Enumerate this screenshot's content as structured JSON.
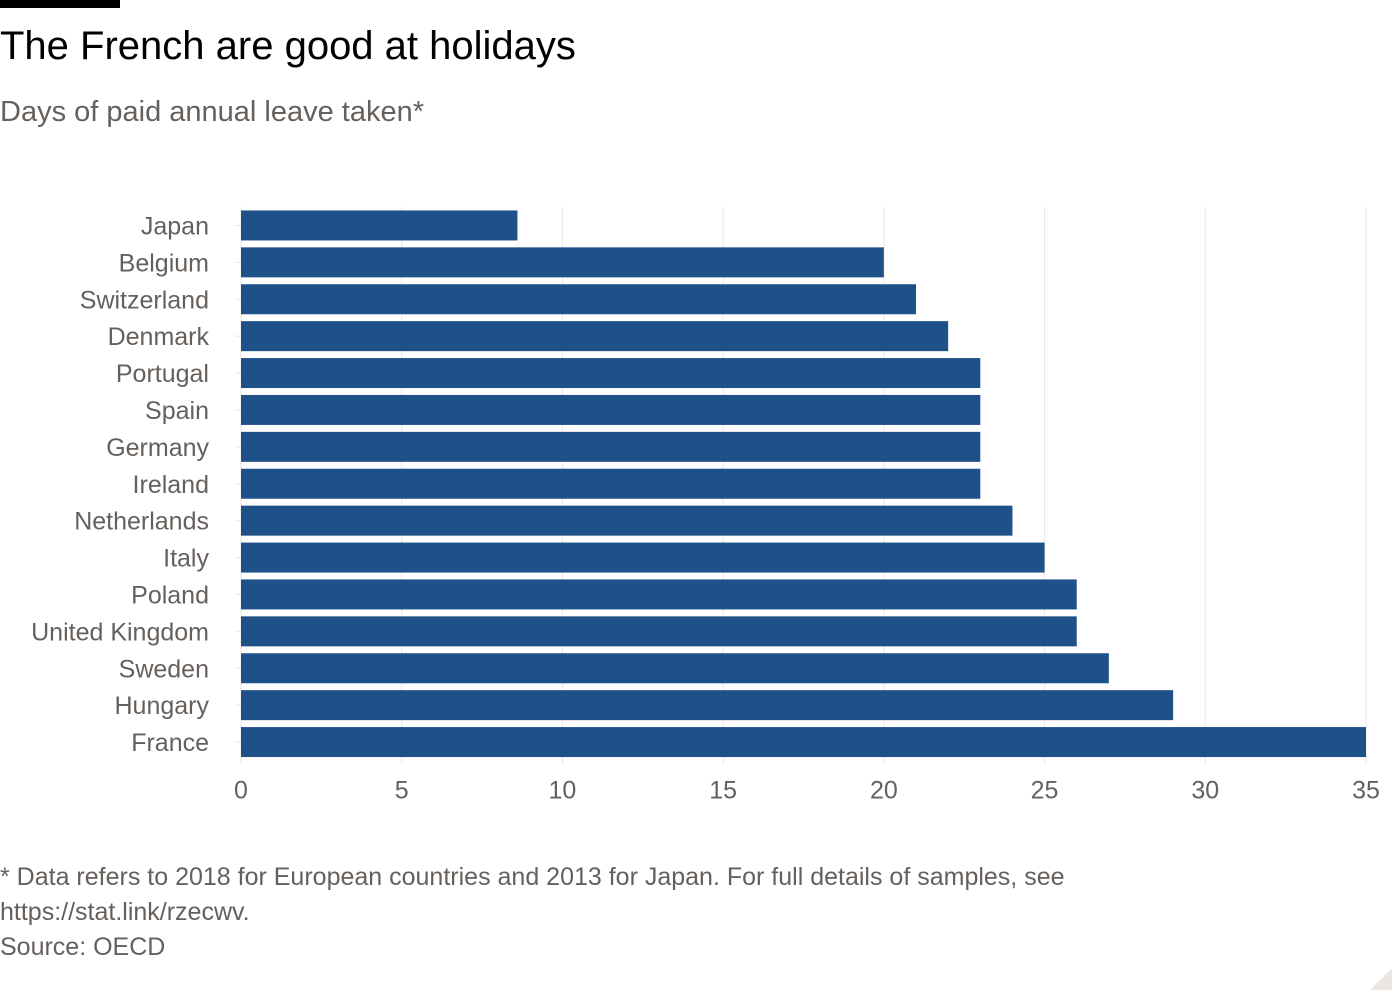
{
  "title": "The French are good at holidays",
  "subtitle": "Days of paid annual leave taken*",
  "footnote": {
    "line1": "* Data refers to 2018 for European countries and 2013 for Japan. For full details of samples, see",
    "line2": "https://stat.link/rzecwv.",
    "source": "Source: OECD"
  },
  "colors": {
    "bar": "#1f5189",
    "grid": "#ebe6e1",
    "axis_text": "#66605c",
    "background": "#ffffff"
  },
  "chart_data": {
    "type": "bar",
    "orientation": "horizontal",
    "title": "The French are good at holidays",
    "subtitle": "Days of paid annual leave taken*",
    "xlabel": "",
    "ylabel": "",
    "categories": [
      "Japan",
      "Belgium",
      "Switzerland",
      "Denmark",
      "Portugal",
      "Spain",
      "Germany",
      "Ireland",
      "Netherlands",
      "Italy",
      "Poland",
      "United Kingdom",
      "Sweden",
      "Hungary",
      "France"
    ],
    "values": [
      8.6,
      20,
      21,
      22,
      23,
      23,
      23,
      23,
      24,
      25,
      26,
      26,
      27,
      29,
      35
    ],
    "xlim": [
      0,
      35
    ],
    "xticks": [
      0,
      5,
      10,
      15,
      20,
      25,
      30,
      35
    ],
    "grid": "vertical",
    "legend": "none"
  }
}
